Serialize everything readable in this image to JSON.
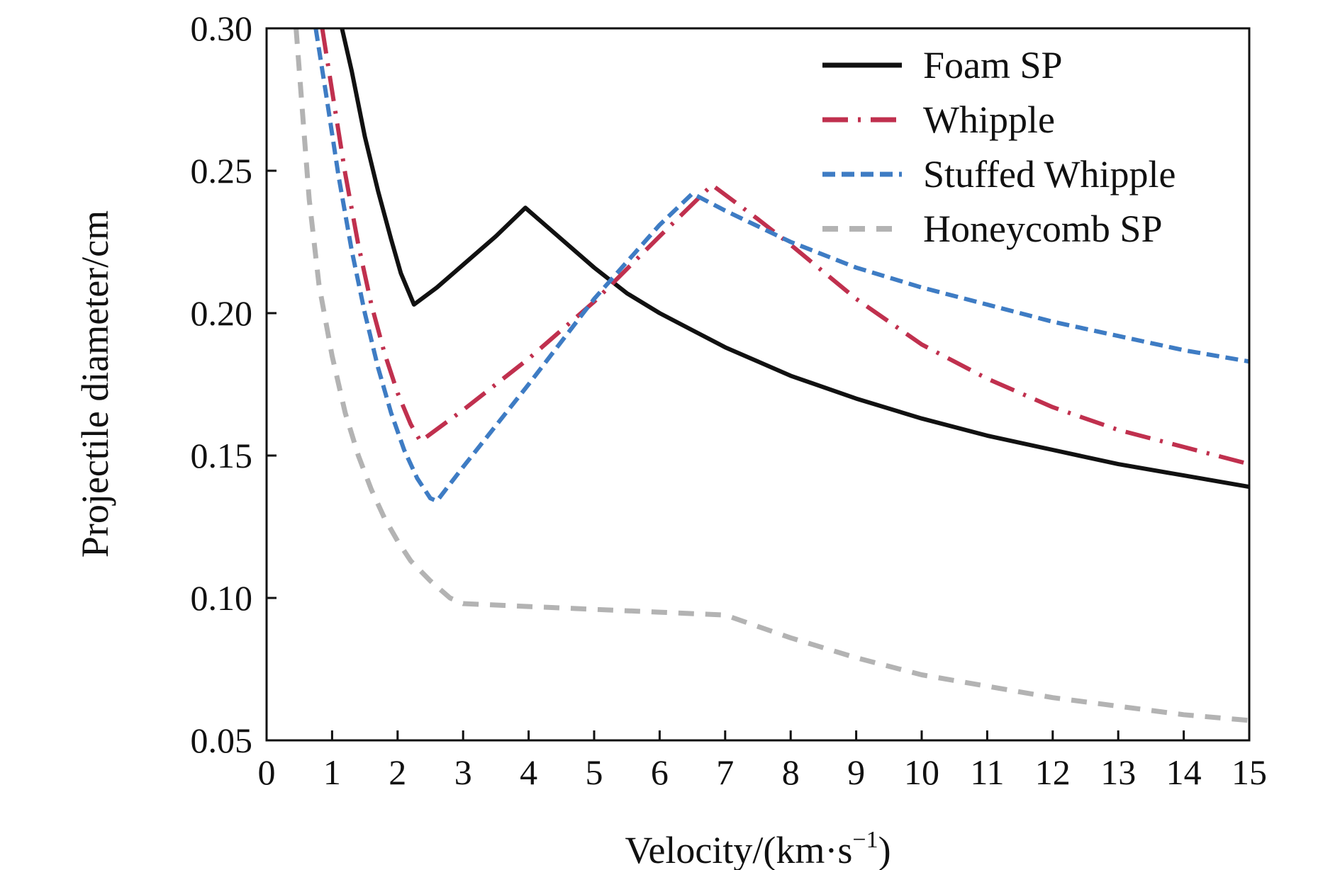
{
  "chart_data": {
    "type": "line",
    "title": "",
    "xlabel": "Velocity/(km·s",
    "xlabel_sup": "−1",
    "xlabel_close": ")",
    "ylabel": "Projectile diameter/cm",
    "xlim": [
      0,
      15
    ],
    "ylim": [
      0.05,
      0.3
    ],
    "x_ticks": [
      "0",
      "1",
      "2",
      "3",
      "4",
      "5",
      "6",
      "7",
      "8",
      "9",
      "10",
      "11",
      "12",
      "13",
      "14",
      "15"
    ],
    "y_ticks": [
      "0.05",
      "0.10",
      "0.15",
      "0.20",
      "0.25",
      "0.30"
    ],
    "grid": false,
    "legend_position": "top-right",
    "series": [
      {
        "name": "Foam SP",
        "color": "#111111",
        "style": "solid",
        "points": [
          [
            1.15,
            0.3
          ],
          [
            1.3,
            0.285
          ],
          [
            1.5,
            0.262
          ],
          [
            1.7,
            0.243
          ],
          [
            1.9,
            0.226
          ],
          [
            2.05,
            0.214
          ],
          [
            2.25,
            0.203
          ],
          [
            2.6,
            0.209
          ],
          [
            3.0,
            0.217
          ],
          [
            3.5,
            0.227
          ],
          [
            3.95,
            0.237
          ],
          [
            4.5,
            0.226
          ],
          [
            5.0,
            0.216
          ],
          [
            5.5,
            0.207
          ],
          [
            6.0,
            0.2
          ],
          [
            6.5,
            0.194
          ],
          [
            7.0,
            0.188
          ],
          [
            7.5,
            0.183
          ],
          [
            8.0,
            0.178
          ],
          [
            9.0,
            0.17
          ],
          [
            10.0,
            0.163
          ],
          [
            11.0,
            0.157
          ],
          [
            12.0,
            0.152
          ],
          [
            13.0,
            0.147
          ],
          [
            14.0,
            0.143
          ],
          [
            15.0,
            0.139
          ]
        ]
      },
      {
        "name": "Whipple",
        "color": "#c0304e",
        "style": "dashdot",
        "points": [
          [
            0.85,
            0.3
          ],
          [
            1.0,
            0.278
          ],
          [
            1.2,
            0.249
          ],
          [
            1.4,
            0.224
          ],
          [
            1.6,
            0.203
          ],
          [
            1.8,
            0.186
          ],
          [
            2.0,
            0.172
          ],
          [
            2.2,
            0.161
          ],
          [
            2.35,
            0.155
          ],
          [
            3.0,
            0.166
          ],
          [
            4.0,
            0.184
          ],
          [
            5.0,
            0.204
          ],
          [
            6.0,
            0.227
          ],
          [
            6.8,
            0.245
          ],
          [
            7.5,
            0.233
          ],
          [
            8.0,
            0.224
          ],
          [
            9.0,
            0.205
          ],
          [
            10.0,
            0.189
          ],
          [
            11.0,
            0.177
          ],
          [
            12.0,
            0.167
          ],
          [
            13.0,
            0.159
          ],
          [
            14.0,
            0.153
          ],
          [
            15.0,
            0.147
          ]
        ]
      },
      {
        "name": "Stuffed Whipple",
        "color": "#3e7cc4",
        "style": "dashed",
        "points": [
          [
            0.75,
            0.3
          ],
          [
            0.9,
            0.278
          ],
          [
            1.1,
            0.248
          ],
          [
            1.3,
            0.222
          ],
          [
            1.5,
            0.2
          ],
          [
            1.7,
            0.181
          ],
          [
            1.9,
            0.165
          ],
          [
            2.1,
            0.152
          ],
          [
            2.3,
            0.142
          ],
          [
            2.5,
            0.135
          ],
          [
            2.6,
            0.134
          ],
          [
            3.0,
            0.146
          ],
          [
            4.0,
            0.175
          ],
          [
            5.0,
            0.205
          ],
          [
            6.0,
            0.231
          ],
          [
            6.5,
            0.242
          ],
          [
            7.0,
            0.236
          ],
          [
            8.0,
            0.225
          ],
          [
            9.0,
            0.216
          ],
          [
            10.0,
            0.209
          ],
          [
            11.0,
            0.203
          ],
          [
            12.0,
            0.197
          ],
          [
            13.0,
            0.192
          ],
          [
            14.0,
            0.187
          ],
          [
            15.0,
            0.183
          ]
        ]
      },
      {
        "name": "Honeycomb SP",
        "color": "#b3b3b3",
        "style": "longdash",
        "points": [
          [
            0.45,
            0.3
          ],
          [
            0.55,
            0.27
          ],
          [
            0.65,
            0.24
          ],
          [
            0.8,
            0.21
          ],
          [
            1.0,
            0.185
          ],
          [
            1.2,
            0.165
          ],
          [
            1.4,
            0.15
          ],
          [
            1.6,
            0.138
          ],
          [
            1.8,
            0.128
          ],
          [
            2.0,
            0.12
          ],
          [
            2.2,
            0.113
          ],
          [
            2.5,
            0.106
          ],
          [
            2.8,
            0.1
          ],
          [
            3.0,
            0.098
          ],
          [
            4.0,
            0.097
          ],
          [
            5.0,
            0.096
          ],
          [
            6.0,
            0.095
          ],
          [
            7.0,
            0.094
          ],
          [
            8.0,
            0.086
          ],
          [
            9.0,
            0.079
          ],
          [
            10.0,
            0.073
          ],
          [
            11.0,
            0.069
          ],
          [
            12.0,
            0.065
          ],
          [
            13.0,
            0.062
          ],
          [
            14.0,
            0.059
          ],
          [
            15.0,
            0.057
          ]
        ]
      }
    ]
  }
}
